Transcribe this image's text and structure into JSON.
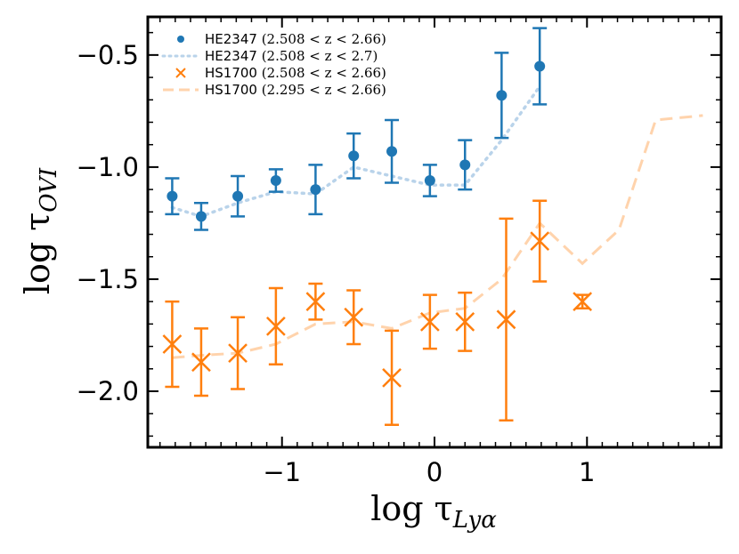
{
  "chart_data": {
    "type": "scatter",
    "xlabel": "log τ",
    "xlabel_sub": "Lyα",
    "ylabel": "log τ",
    "ylabel_sub": "OVI",
    "xlim": [
      -1.88,
      1.88
    ],
    "ylim": [
      -2.25,
      -0.33
    ],
    "xticks": [
      -1,
      0,
      1
    ],
    "xtick_labels": [
      "−1",
      "0",
      "1"
    ],
    "yticks": [
      -2.0,
      -1.5,
      -1.0,
      -0.5
    ],
    "ytick_labels": [
      "−2.0",
      "−1.5",
      "−1.0",
      "−0.5"
    ],
    "x_minor_step": 0.1,
    "y_minor_step": 0.1,
    "legend_position": "top-left",
    "colors": {
      "blue": "#1f77b4",
      "orange": "#ff7f0e",
      "blue_light": "#b9d3ea",
      "orange_light": "#ffd3ac"
    },
    "series": [
      {
        "name": "HE2347",
        "range_label": "(2.508 < z < 2.66)",
        "style": "points-errorbars",
        "color": "#1f77b4",
        "x": [
          -1.72,
          -1.53,
          -1.29,
          -1.04,
          -0.78,
          -0.53,
          -0.28,
          -0.03,
          0.2,
          0.44,
          0.69
        ],
        "y": [
          -1.13,
          -1.22,
          -1.13,
          -1.06,
          -1.1,
          -0.95,
          -0.93,
          -1.06,
          -0.99,
          -0.68,
          -0.55
        ],
        "err_low": [
          0.08,
          0.06,
          0.09,
          0.05,
          0.11,
          0.1,
          0.14,
          0.07,
          0.11,
          0.19,
          0.17
        ],
        "err_high": [
          0.08,
          0.06,
          0.09,
          0.05,
          0.11,
          0.1,
          0.14,
          0.07,
          0.11,
          0.19,
          0.17
        ]
      },
      {
        "name": "HE2347",
        "range_label": "(2.508 < z < 2.7)",
        "style": "dotted-line",
        "color": "#b9d3ea",
        "x": [
          -1.72,
          -1.53,
          -1.29,
          -1.04,
          -0.78,
          -0.53,
          -0.28,
          -0.03,
          0.2,
          0.44,
          0.69
        ],
        "y": [
          -1.18,
          -1.22,
          -1.16,
          -1.11,
          -1.12,
          -1.0,
          -1.04,
          -1.08,
          -1.08,
          -0.88,
          -0.64
        ]
      },
      {
        "name": "HS1700",
        "range_label": "(2.508 < z < 2.66)",
        "style": "crosses-errorbars",
        "color": "#ff7f0e",
        "x": [
          -1.72,
          -1.53,
          -1.29,
          -1.04,
          -0.78,
          -0.53,
          -0.28,
          -0.03,
          0.2,
          0.47,
          0.69,
          0.97
        ],
        "y": [
          -1.79,
          -1.87,
          -1.83,
          -1.71,
          -1.6,
          -1.67,
          -1.94,
          -1.69,
          -1.69,
          -1.68,
          -1.33,
          -1.6
        ],
        "err_low": [
          0.19,
          0.15,
          0.16,
          0.17,
          0.08,
          0.12,
          0.21,
          0.12,
          0.13,
          0.45,
          0.18,
          0.03
        ],
        "err_high": [
          0.19,
          0.15,
          0.16,
          0.17,
          0.08,
          0.12,
          0.21,
          0.12,
          0.13,
          0.45,
          0.18,
          0.03
        ]
      },
      {
        "name": "HS1700",
        "range_label": "(2.295 < z < 2.66)",
        "style": "dashed-line",
        "color": "#ffd3ac",
        "x": [
          -1.72,
          -1.53,
          -1.29,
          -1.04,
          -0.78,
          -0.53,
          -0.28,
          -0.03,
          0.2,
          0.44,
          0.69,
          0.97,
          1.21,
          1.45,
          1.76
        ],
        "y": [
          -1.85,
          -1.84,
          -1.83,
          -1.79,
          -1.7,
          -1.69,
          -1.72,
          -1.65,
          -1.63,
          -1.5,
          -1.25,
          -1.43,
          -1.28,
          -0.79,
          -0.77
        ]
      }
    ]
  }
}
